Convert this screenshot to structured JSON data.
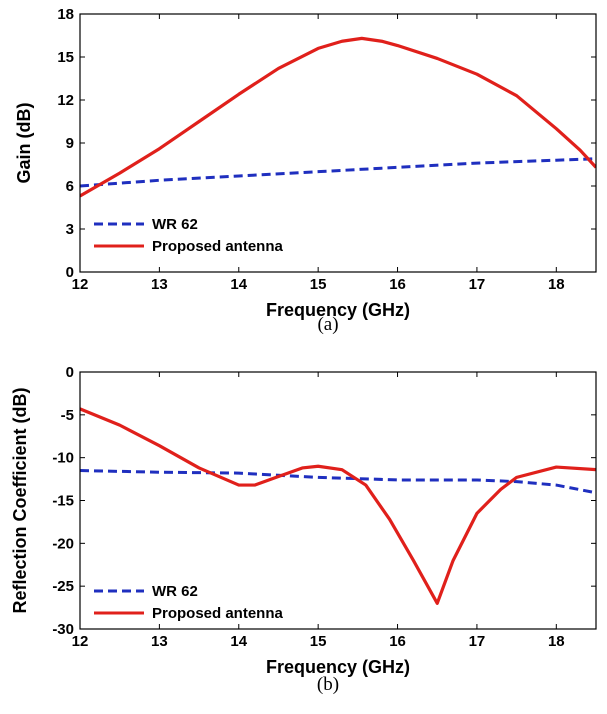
{
  "chart_data": [
    {
      "type": "line",
      "caption": "(a)",
      "xlabel": "Frequency (GHz)",
      "ylabel": "Gain (dB)",
      "xlim": [
        12,
        18.5
      ],
      "ylim": [
        0,
        18
      ],
      "xticks": [
        12,
        13,
        14,
        15,
        16,
        17,
        18
      ],
      "yticks": [
        0,
        3,
        6,
        9,
        12,
        15,
        18
      ],
      "legend_position": "bottom-left",
      "series": [
        {
          "name": "WR 62",
          "color": "#1f2fbf",
          "style": "dashed",
          "x": [
            12,
            13,
            14,
            15,
            16,
            17,
            18,
            18.5
          ],
          "y": [
            6.0,
            6.4,
            6.7,
            7.0,
            7.3,
            7.6,
            7.8,
            7.9
          ]
        },
        {
          "name": "Proposed antenna",
          "color": "#e0201b",
          "style": "solid",
          "x": [
            12,
            12.5,
            13,
            13.5,
            14,
            14.5,
            15,
            15.3,
            15.55,
            15.8,
            16,
            16.5,
            17,
            17.5,
            18,
            18.3,
            18.5
          ],
          "y": [
            5.3,
            6.9,
            8.6,
            10.5,
            12.4,
            14.2,
            15.6,
            16.1,
            16.3,
            16.1,
            15.8,
            14.9,
            13.8,
            12.3,
            10.0,
            8.5,
            7.3
          ]
        }
      ]
    },
    {
      "type": "line",
      "caption": "(b)",
      "xlabel": "Frequency (GHz)",
      "ylabel": "Reflection Coefficient (dB)",
      "xlim": [
        12,
        18.5
      ],
      "ylim": [
        -30,
        0
      ],
      "xticks": [
        12,
        13,
        14,
        15,
        16,
        17,
        18
      ],
      "yticks": [
        0,
        -5,
        -10,
        -15,
        -20,
        -25,
        -30
      ],
      "legend_position": "bottom-left",
      "series": [
        {
          "name": "WR 62",
          "color": "#1f2fbf",
          "style": "dashed",
          "x": [
            12,
            13,
            14,
            15,
            16,
            17,
            17.5,
            18,
            18.5
          ],
          "y": [
            -11.5,
            -11.7,
            -11.8,
            -12.3,
            -12.6,
            -12.6,
            -12.8,
            -13.2,
            -14.1
          ]
        },
        {
          "name": "Proposed antenna",
          "color": "#e0201b",
          "style": "solid",
          "x": [
            12,
            12.5,
            13,
            13.5,
            14,
            14.2,
            14.5,
            14.8,
            15,
            15.3,
            15.6,
            15.9,
            16.2,
            16.5,
            16.7,
            17,
            17.3,
            17.5,
            18,
            18.5
          ],
          "y": [
            -4.3,
            -6.2,
            -8.6,
            -11.2,
            -13.2,
            -13.2,
            -12.2,
            -11.2,
            -11.0,
            -11.4,
            -13.2,
            -17.2,
            -22.0,
            -27.0,
            -22.0,
            -16.5,
            -13.7,
            -12.3,
            -11.1,
            -11.4
          ]
        }
      ]
    }
  ]
}
